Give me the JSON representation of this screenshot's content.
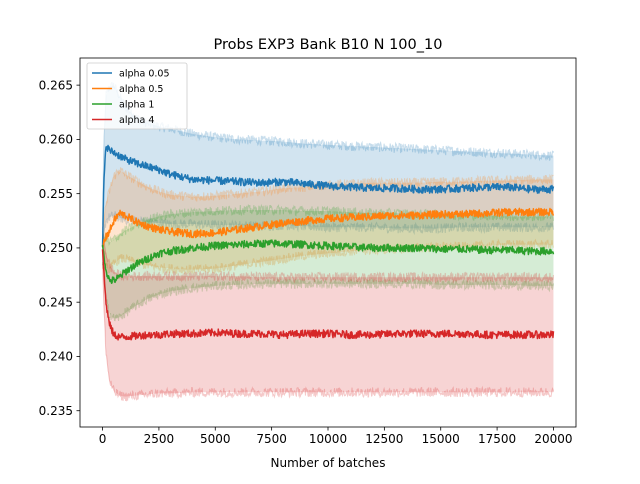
{
  "chart_data": {
    "type": "line",
    "title": "Probs EXP3 Bank B10 N 100_10",
    "xlabel": "Number of batches",
    "ylabel": "",
    "xlim": [
      -1000,
      21000
    ],
    "ylim": [
      0.2335,
      0.2675
    ],
    "xticks": [
      0,
      2500,
      5000,
      7500,
      10000,
      12500,
      15000,
      17500,
      20000
    ],
    "xtick_labels": [
      "0",
      "2500",
      "5000",
      "7500",
      "10000",
      "12500",
      "15000",
      "17500",
      "20000"
    ],
    "yticks": [
      0.235,
      0.24,
      0.245,
      0.25,
      0.255,
      0.26,
      0.265
    ],
    "ytick_labels": [
      "0.235",
      "0.240",
      "0.245",
      "0.250",
      "0.255",
      "0.260",
      "0.265"
    ],
    "legend_position": "top-left",
    "grid": false,
    "series": [
      {
        "name": "alpha 0.05",
        "color": "#1f77b4",
        "x": [
          0,
          50,
          150,
          300,
          500,
          750,
          1000,
          1500,
          2000,
          2500,
          3000,
          4000,
          5000,
          6000,
          7000,
          8000,
          9000,
          10000,
          11000,
          12000,
          13000,
          14000,
          15000,
          16000,
          17000,
          18000,
          19000,
          20000
        ],
        "mean": [
          0.25,
          0.2555,
          0.2595,
          0.259,
          0.2588,
          0.2585,
          0.2582,
          0.2578,
          0.2575,
          0.2572,
          0.2568,
          0.2563,
          0.2562,
          0.2561,
          0.256,
          0.2561,
          0.2559,
          0.2557,
          0.2556,
          0.2555,
          0.2555,
          0.2554,
          0.2554,
          0.2555,
          0.2556,
          0.2556,
          0.2554,
          0.2554
        ],
        "upper": [
          0.252,
          0.259,
          0.264,
          0.2648,
          0.265,
          0.264,
          0.263,
          0.262,
          0.2615,
          0.2612,
          0.261,
          0.2605,
          0.2602,
          0.26,
          0.2599,
          0.2598,
          0.2596,
          0.2595,
          0.2594,
          0.2593,
          0.2592,
          0.2591,
          0.259,
          0.2589,
          0.2588,
          0.2587,
          0.2586,
          0.2585
        ],
        "lower": [
          0.248,
          0.251,
          0.2525,
          0.2528,
          0.253,
          0.2528,
          0.2526,
          0.2525,
          0.2524,
          0.2523,
          0.2522,
          0.2522,
          0.2521,
          0.2521,
          0.252,
          0.2521,
          0.252,
          0.2519,
          0.2519,
          0.2519,
          0.2518,
          0.2518,
          0.2518,
          0.2519,
          0.2519,
          0.2519,
          0.2519,
          0.2519
        ]
      },
      {
        "name": "alpha 0.5",
        "color": "#ff7f0e",
        "x": [
          0,
          50,
          150,
          300,
          500,
          750,
          1000,
          1500,
          2000,
          2500,
          3000,
          4000,
          5000,
          6000,
          7000,
          8000,
          9000,
          10000,
          11000,
          12000,
          13000,
          14000,
          15000,
          16000,
          17000,
          18000,
          19000,
          20000
        ],
        "mean": [
          0.25,
          0.2505,
          0.251,
          0.2515,
          0.2525,
          0.2532,
          0.253,
          0.2524,
          0.252,
          0.2517,
          0.2515,
          0.2513,
          0.2514,
          0.2517,
          0.252,
          0.2523,
          0.2525,
          0.2527,
          0.2528,
          0.2529,
          0.253,
          0.253,
          0.2531,
          0.2531,
          0.2532,
          0.2533,
          0.2533,
          0.2533
        ],
        "upper": [
          0.2515,
          0.2525,
          0.254,
          0.2552,
          0.2566,
          0.2572,
          0.2568,
          0.2562,
          0.2556,
          0.2552,
          0.2549,
          0.2547,
          0.2548,
          0.255,
          0.2552,
          0.2555,
          0.2556,
          0.2558,
          0.2559,
          0.256,
          0.256,
          0.256,
          0.2561,
          0.2561,
          0.2562,
          0.2562,
          0.2563,
          0.2563
        ],
        "lower": [
          0.2485,
          0.2485,
          0.2482,
          0.248,
          0.2485,
          0.249,
          0.249,
          0.2486,
          0.2484,
          0.2482,
          0.2481,
          0.248,
          0.2481,
          0.2484,
          0.2487,
          0.249,
          0.2493,
          0.2495,
          0.2497,
          0.2498,
          0.2499,
          0.25,
          0.2501,
          0.2501,
          0.2502,
          0.2503,
          0.2503,
          0.2503
        ]
      },
      {
        "name": "alpha 1",
        "color": "#2ca02c",
        "x": [
          0,
          50,
          150,
          300,
          500,
          750,
          1000,
          1500,
          2000,
          2500,
          3000,
          4000,
          5000,
          6000,
          7000,
          8000,
          9000,
          10000,
          11000,
          12000,
          13000,
          14000,
          15000,
          16000,
          17000,
          18000,
          19000,
          20000
        ],
        "mean": [
          0.25,
          0.2495,
          0.248,
          0.247,
          0.247,
          0.2473,
          0.2478,
          0.2485,
          0.249,
          0.2495,
          0.2497,
          0.25,
          0.2502,
          0.2503,
          0.2504,
          0.2504,
          0.2503,
          0.2502,
          0.2501,
          0.25,
          0.25,
          0.25,
          0.2499,
          0.2499,
          0.2498,
          0.2498,
          0.2497,
          0.2497
        ],
        "upper": [
          0.2512,
          0.2512,
          0.2508,
          0.2505,
          0.2508,
          0.2512,
          0.2516,
          0.2521,
          0.2526,
          0.2529,
          0.2531,
          0.2533,
          0.2534,
          0.2535,
          0.2535,
          0.2535,
          0.2534,
          0.2534,
          0.2533,
          0.2532,
          0.2532,
          0.2531,
          0.2531,
          0.253,
          0.253,
          0.2529,
          0.2529,
          0.2529
        ],
        "lower": [
          0.2488,
          0.2478,
          0.2452,
          0.244,
          0.2435,
          0.2436,
          0.244,
          0.2447,
          0.2453,
          0.2457,
          0.246,
          0.2463,
          0.2465,
          0.2466,
          0.2467,
          0.2467,
          0.2467,
          0.2467,
          0.2467,
          0.2467,
          0.2467,
          0.2467,
          0.2466,
          0.2466,
          0.2466,
          0.2466,
          0.2465,
          0.2465
        ]
      },
      {
        "name": "alpha 4",
        "color": "#d62728",
        "x": [
          0,
          50,
          150,
          300,
          500,
          750,
          1000,
          1500,
          2000,
          2500,
          3000,
          4000,
          5000,
          6000,
          7000,
          8000,
          9000,
          10000,
          11000,
          12000,
          13000,
          14000,
          15000,
          16000,
          17000,
          18000,
          19000,
          20000
        ],
        "mean": [
          0.25,
          0.248,
          0.245,
          0.243,
          0.242,
          0.2418,
          0.2418,
          0.2419,
          0.242,
          0.242,
          0.2421,
          0.2421,
          0.2422,
          0.2421,
          0.2421,
          0.242,
          0.2421,
          0.2421,
          0.242,
          0.242,
          0.2421,
          0.2421,
          0.2421,
          0.2421,
          0.242,
          0.242,
          0.242,
          0.242
        ],
        "upper": [
          0.2515,
          0.251,
          0.2495,
          0.2485,
          0.2478,
          0.2475,
          0.2474,
          0.2474,
          0.2474,
          0.2474,
          0.2474,
          0.2474,
          0.2474,
          0.2474,
          0.2473,
          0.2473,
          0.2473,
          0.2473,
          0.2473,
          0.2473,
          0.2473,
          0.2473,
          0.2473,
          0.2473,
          0.2473,
          0.2473,
          0.2473,
          0.2473
        ],
        "lower": [
          0.2485,
          0.245,
          0.2405,
          0.2378,
          0.2368,
          0.2364,
          0.2363,
          0.2364,
          0.2365,
          0.2366,
          0.2366,
          0.2367,
          0.2367,
          0.2367,
          0.2367,
          0.2367,
          0.2367,
          0.2367,
          0.2367,
          0.2367,
          0.2367,
          0.2367,
          0.2367,
          0.2367,
          0.2367,
          0.2367,
          0.2367,
          0.2367
        ]
      }
    ]
  }
}
